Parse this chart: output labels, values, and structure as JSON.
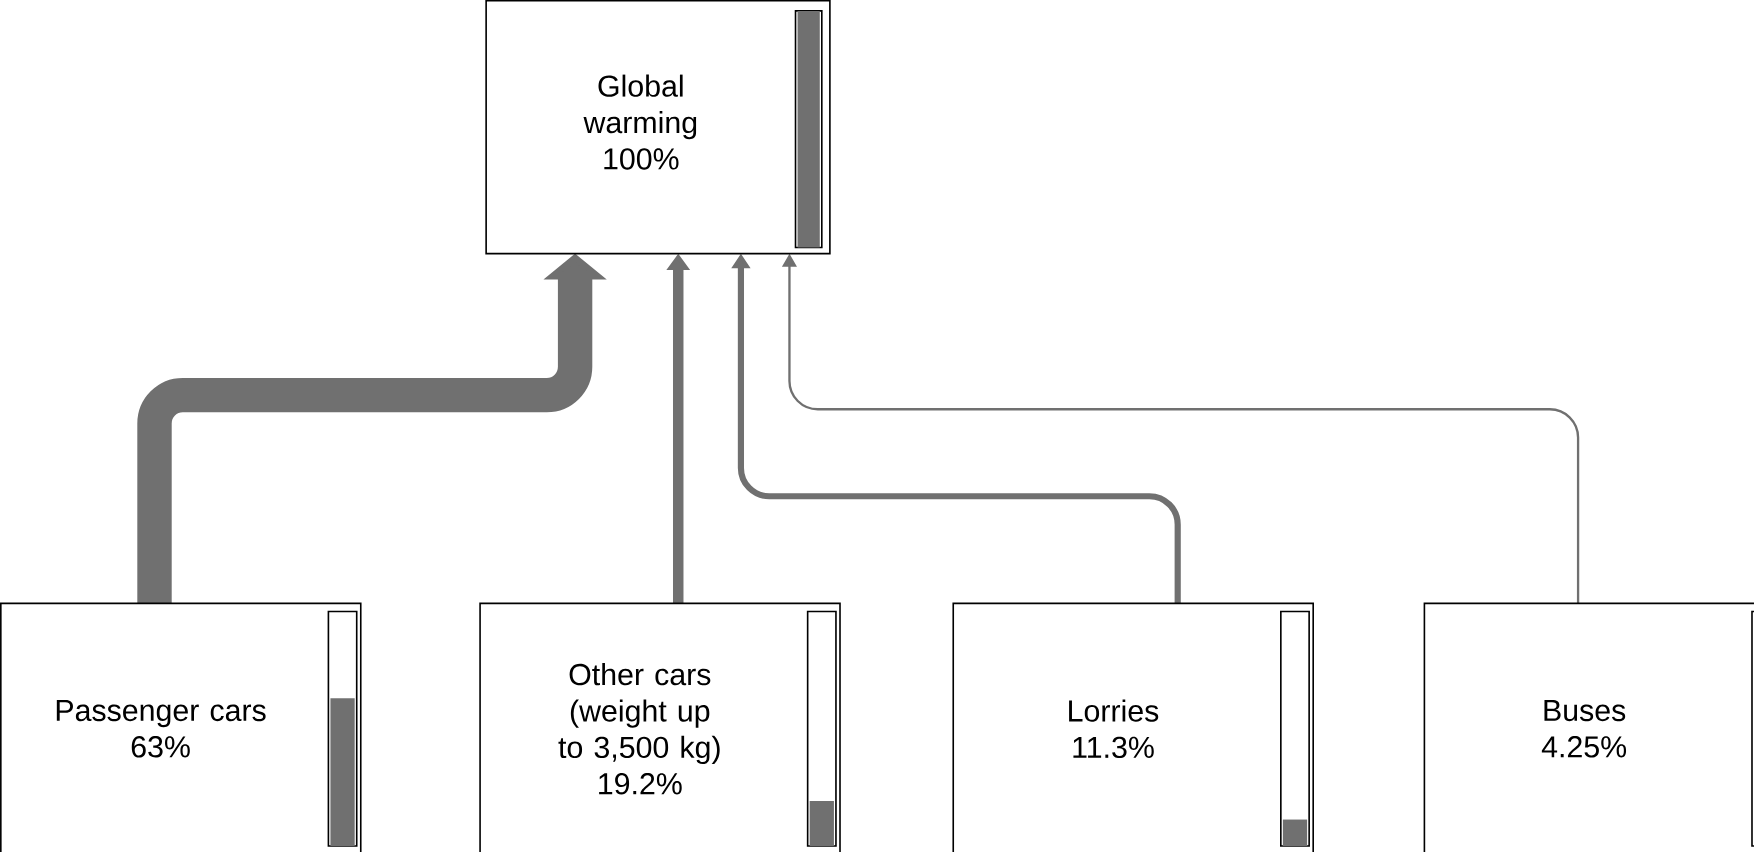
{
  "chart_data": {
    "type": "other",
    "color": "#707070",
    "categories": [
      "Global warming",
      "Passenger cars",
      "Other cars (weight up to 3,500 kg)",
      "Lorries",
      "Buses"
    ],
    "values": [
      100,
      63,
      19.2,
      11.3,
      4.25
    ],
    "value_labels": [
      "100%",
      "63%",
      "19.2%",
      "11.3%",
      "4.25%"
    ]
  }
}
